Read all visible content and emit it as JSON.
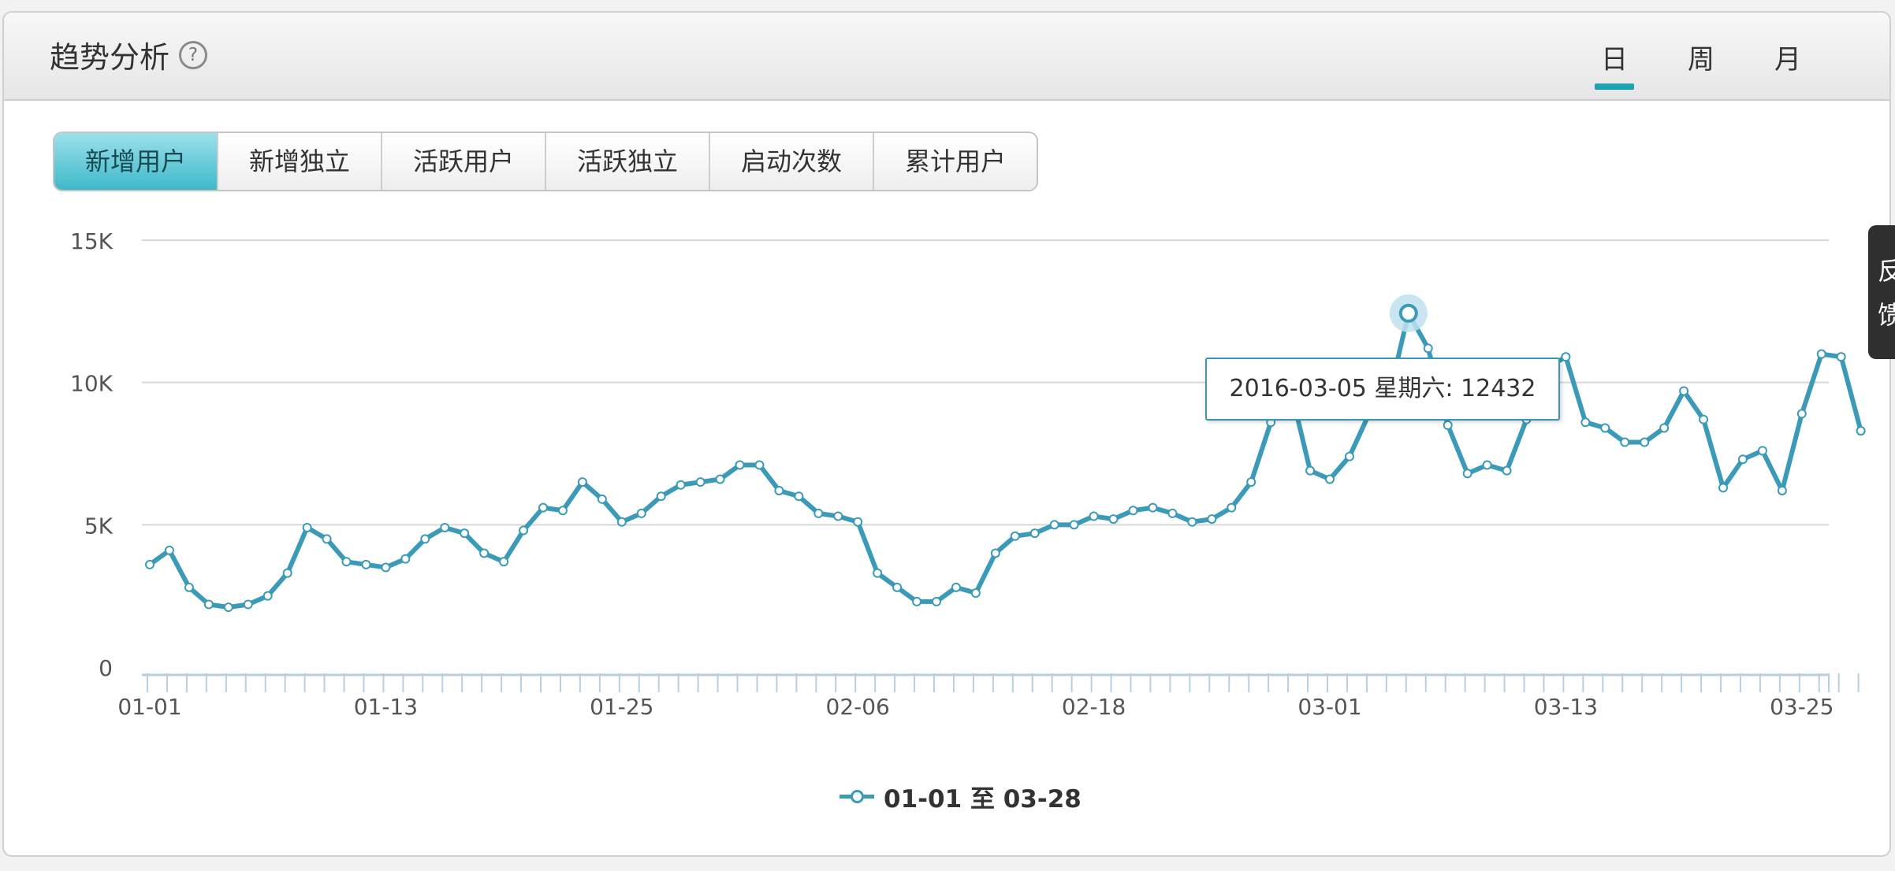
{
  "header": {
    "title": "趋势分析",
    "help_icon": "?",
    "periods": [
      "日",
      "周",
      "月"
    ],
    "active_period": "日"
  },
  "tabs": {
    "items": [
      "新增用户",
      "新增独立",
      "活跃用户",
      "活跃独立",
      "启动次数",
      "累计用户"
    ],
    "active": "新增用户"
  },
  "feedback": "反馈",
  "colors": {
    "accent": "#1da3b4",
    "series": "#3a9ab7"
  },
  "tooltip": {
    "date": "2016-03-05",
    "weekday": "星期六",
    "value": 12432,
    "text": "2016-03-05 星期六: 12432"
  },
  "chart_data": {
    "type": "line",
    "x": [
      "01-01",
      "01-02",
      "01-03",
      "01-04",
      "01-05",
      "01-06",
      "01-07",
      "01-08",
      "01-09",
      "01-10",
      "01-11",
      "01-12",
      "01-13",
      "01-14",
      "01-15",
      "01-16",
      "01-17",
      "01-18",
      "01-19",
      "01-20",
      "01-21",
      "01-22",
      "01-23",
      "01-24",
      "01-25",
      "01-26",
      "01-27",
      "01-28",
      "01-29",
      "01-30",
      "01-31",
      "02-01",
      "02-02",
      "02-03",
      "02-04",
      "02-05",
      "02-06",
      "02-07",
      "02-08",
      "02-09",
      "02-10",
      "02-11",
      "02-12",
      "02-13",
      "02-14",
      "02-15",
      "02-16",
      "02-17",
      "02-18",
      "02-19",
      "02-20",
      "02-21",
      "02-22",
      "02-23",
      "02-24",
      "02-25",
      "02-26",
      "02-27",
      "02-28",
      "02-29",
      "03-01",
      "03-02",
      "03-03",
      "03-04",
      "03-05",
      "03-06",
      "03-07",
      "03-08",
      "03-09",
      "03-10",
      "03-11",
      "03-12",
      "03-13",
      "03-14",
      "03-15",
      "03-16",
      "03-17",
      "03-18",
      "03-19",
      "03-20",
      "03-21",
      "03-22",
      "03-23",
      "03-24",
      "03-25",
      "03-26",
      "03-27",
      "03-28"
    ],
    "series": [
      {
        "name": "01-01 至 03-28",
        "values": [
          3600,
          4100,
          2800,
          2200,
          2100,
          2200,
          2500,
          3300,
          4900,
          4500,
          3700,
          3600,
          3500,
          3800,
          4500,
          4900,
          4700,
          4000,
          3700,
          4800,
          5600,
          5500,
          6500,
          5900,
          5100,
          5400,
          6000,
          6400,
          6500,
          6600,
          7100,
          7100,
          6200,
          6000,
          5400,
          5300,
          5100,
          3300,
          2800,
          2300,
          2300,
          2800,
          2600,
          4000,
          4600,
          4700,
          5000,
          5000,
          5300,
          5200,
          5500,
          5600,
          5400,
          5100,
          5200,
          5600,
          6500,
          8600,
          9800,
          6900,
          6600,
          7400,
          8900,
          9500,
          12432,
          11200,
          8500,
          6800,
          7100,
          6900,
          8700,
          10500,
          10900,
          8600,
          8400,
          7900,
          7900,
          8400,
          9700,
          8700,
          6300,
          7300,
          7600,
          6200,
          8900,
          11000,
          10900,
          8300
        ]
      }
    ],
    "ylim": [
      0,
      15000
    ],
    "yticks": [
      "0",
      "5K",
      "10K",
      "15K"
    ],
    "xticks": [
      "01-01",
      "01-13",
      "01-25",
      "02-06",
      "02-18",
      "03-01",
      "03-13",
      "03-25"
    ],
    "legend": "01-01 至 03-28",
    "legend_position": "bottom-center",
    "grid": true,
    "highlight_index": 64
  }
}
